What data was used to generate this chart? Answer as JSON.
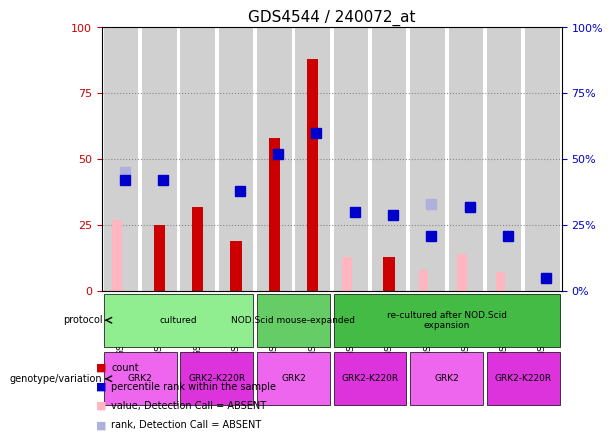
{
  "title": "GDS4544 / 240072_at",
  "samples": [
    "GSM1049712",
    "GSM1049713",
    "GSM1049714",
    "GSM1049715",
    "GSM1049708",
    "GSM1049709",
    "GSM1049710",
    "GSM1049711",
    "GSM1049716",
    "GSM1049717",
    "GSM1049718",
    "GSM1049719"
  ],
  "count_values": [
    null,
    25,
    32,
    19,
    58,
    88,
    null,
    13,
    null,
    null,
    null,
    null
  ],
  "percentile_values": [
    42,
    42,
    null,
    38,
    52,
    60,
    30,
    29,
    21,
    32,
    21,
    5
  ],
  "absent_value": [
    27,
    null,
    null,
    null,
    null,
    null,
    13,
    null,
    8,
    14,
    7,
    null
  ],
  "absent_rank": [
    45,
    null,
    null,
    null,
    null,
    null,
    null,
    null,
    33,
    32,
    null,
    5
  ],
  "protocol_groups": [
    {
      "label": "cultured",
      "start": 0,
      "end": 4,
      "color": "#90EE90"
    },
    {
      "label": "NOD.Scid mouse-expanded",
      "start": 4,
      "end": 6,
      "color": "#66CC66"
    },
    {
      "label": "re-cultured after NOD.Scid\nexpansion",
      "start": 6,
      "end": 8,
      "color": "#55BB55"
    }
  ],
  "genotype_groups": [
    {
      "label": "GRK2",
      "start": 0,
      "end": 2,
      "color": "#EE66EE"
    },
    {
      "label": "GRK2-K220R",
      "start": 2,
      "end": 4,
      "color": "#DD44DD"
    },
    {
      "label": "GRK2",
      "start": 4,
      "end": 5,
      "color": "#EE66EE"
    },
    {
      "label": "GRK2-K220R",
      "start": 5,
      "end": 6,
      "color": "#DD44DD"
    },
    {
      "label": "GRK2",
      "start": 6,
      "end": 8,
      "color": "#EE66EE"
    },
    {
      "label": "GRK2-K220R",
      "start": 8,
      "end": 10,
      "color": "#DD44DD"
    }
  ],
  "count_color": "#CC0000",
  "percentile_color": "#0000CC",
  "absent_value_color": "#FFB6C1",
  "absent_rank_color": "#B0B0DD",
  "bar_bg_color": "#D0D0D0",
  "ylim": [
    0,
    100
  ],
  "yticks": [
    0,
    25,
    50,
    75,
    100
  ],
  "grid_color": "#888888"
}
